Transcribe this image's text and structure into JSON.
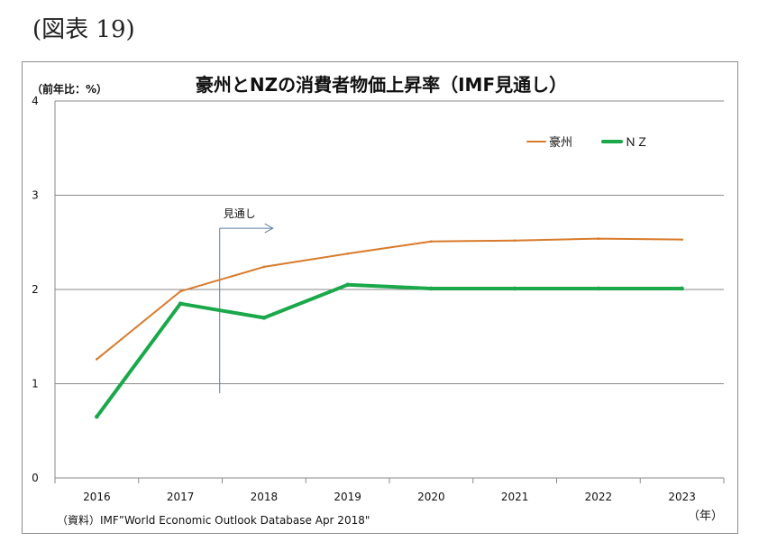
{
  "figure_label": "(図表 19)",
  "chart_data": {
    "type": "line",
    "title": "豪州とNZの消費者物価上昇率（IMF見通し）",
    "ylabel": "（前年比：%）",
    "xlabel": "（年）",
    "categories": [
      "2016",
      "2017",
      "2018",
      "2019",
      "2020",
      "2021",
      "2022",
      "2023"
    ],
    "ylim": [
      0,
      4
    ],
    "yticks": [
      "0",
      "1",
      "2",
      "3",
      "4"
    ],
    "grid": true,
    "legend_position": "top-right",
    "series": [
      {
        "name": "豪州",
        "color": "#d97a2b",
        "width": 2,
        "values": [
          1.26,
          1.98,
          2.24,
          2.38,
          2.51,
          2.52,
          2.54,
          2.53
        ]
      },
      {
        "name": "ＮＺ",
        "color": "#1aa84a",
        "width": 4,
        "values": [
          0.65,
          1.85,
          1.7,
          2.05,
          2.01,
          2.01,
          2.01,
          2.01
        ]
      }
    ],
    "annotation": {
      "text": "見通し",
      "color": "#5b7fa3",
      "x_between": [
        "2017",
        "2018"
      ]
    },
    "source": "（資料）IMF”World Economic Outlook Database   Apr 2018\""
  }
}
